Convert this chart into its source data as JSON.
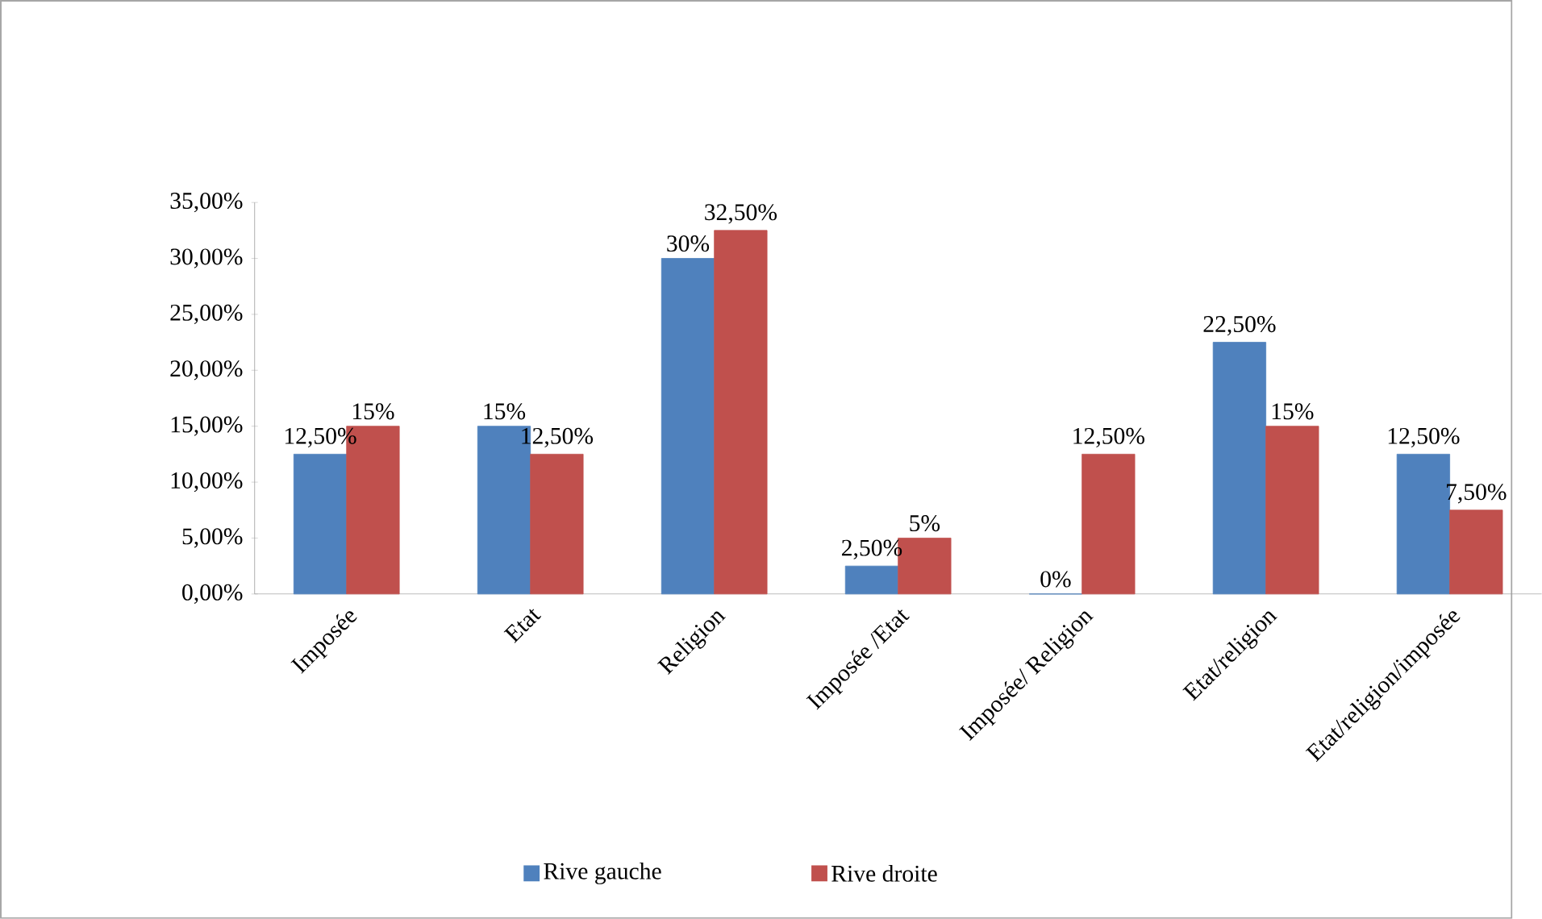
{
  "chart_data": {
    "type": "bar",
    "categories": [
      "Imposée",
      "Etat",
      "Religion",
      "Imposée /Etat",
      "Imposée/ Religion",
      "Etat/religion",
      "Etat/religion/imposée"
    ],
    "series": [
      {
        "name": "Rive gauche",
        "color": "#4f81bd",
        "values": [
          12.5,
          15,
          30,
          2.5,
          0,
          22.5,
          12.5
        ],
        "value_labels": [
          "12,50%",
          "15%",
          "30%",
          "2,50%",
          "0%",
          "22,50%",
          "12,50%"
        ]
      },
      {
        "name": "Rive droite",
        "color": "#c0504d",
        "values": [
          15,
          12.5,
          32.5,
          5,
          12.5,
          15,
          7.5
        ],
        "value_labels": [
          "15%",
          "12,50%",
          "32,50%",
          "5%",
          "12,50%",
          "15%",
          "7,50%"
        ]
      }
    ],
    "ylim": [
      0,
      35
    ],
    "yticks": [
      {
        "value": 0,
        "label": "0,00%"
      },
      {
        "value": 5,
        "label": "5,00%"
      },
      {
        "value": 10,
        "label": "10,00%"
      },
      {
        "value": 15,
        "label": "15,00%"
      },
      {
        "value": 20,
        "label": "20,00%"
      },
      {
        "value": 25,
        "label": "25,00%"
      },
      {
        "value": 30,
        "label": "30,00%"
      },
      {
        "value": 35,
        "label": "35,00%"
      }
    ],
    "legend": "bottom",
    "grid": false
  }
}
